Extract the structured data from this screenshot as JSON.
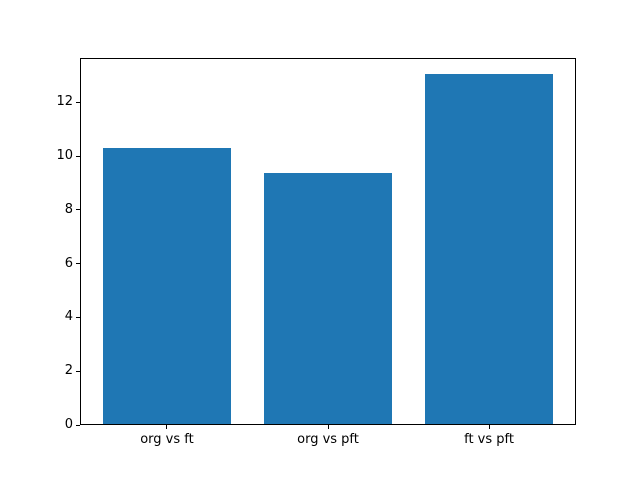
{
  "chart_data": {
    "type": "bar",
    "categories": [
      "org vs ft",
      "org vs pft",
      "ft vs pft"
    ],
    "values": [
      10.25,
      9.35,
      13.0
    ],
    "title": "",
    "xlabel": "",
    "ylabel": "",
    "ylim": [
      0,
      13.65
    ],
    "yticks": [
      0,
      2,
      4,
      6,
      8,
      10,
      12
    ],
    "bar_color": "#1f77b4",
    "background_color": "#ffffff",
    "spine_color": "#000000",
    "bar_width_fraction": 0.8,
    "grid": false,
    "legend": null
  }
}
